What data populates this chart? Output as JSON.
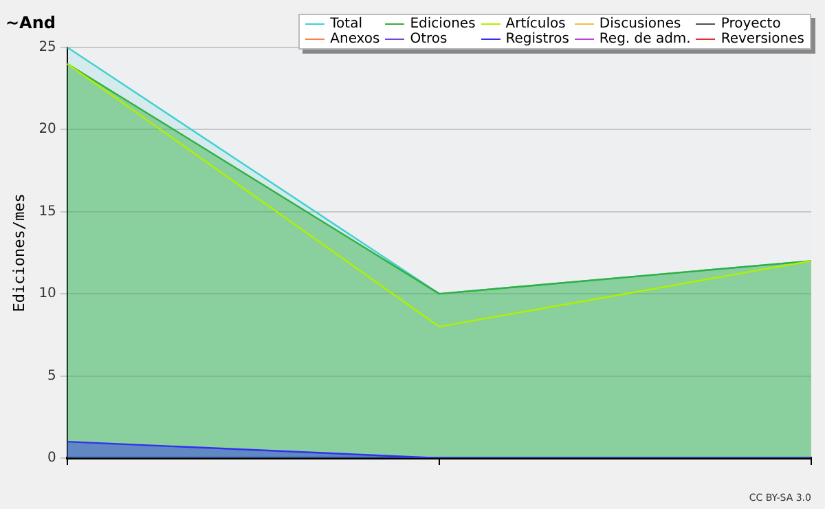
{
  "chart_data": {
    "type": "area",
    "title": "~And",
    "ylabel": "Ediciones/mes",
    "categories": [
      null,
      null,
      null
    ],
    "series": [
      {
        "name": "Total",
        "color": "#40d0d0",
        "type": "area",
        "values": [
          25,
          10,
          12
        ]
      },
      {
        "name": "Ediciones",
        "color": "#30b040",
        "type": "area",
        "values": [
          24,
          10,
          12
        ]
      },
      {
        "name": "Artículos",
        "color": "#b0f000",
        "type": "line",
        "values": [
          24,
          8,
          12
        ]
      },
      {
        "name": "Discusiones",
        "color": "#f0c040",
        "type": "line",
        "values": [
          null,
          null,
          null
        ]
      },
      {
        "name": "Proyecto",
        "color": "#505050",
        "type": "line",
        "values": [
          null,
          null,
          null
        ]
      },
      {
        "name": "Anexos",
        "color": "#ff8040",
        "type": "line",
        "values": [
          null,
          null,
          null
        ]
      },
      {
        "name": "Otros",
        "color": "#8040e0",
        "type": "line",
        "values": [
          null,
          null,
          null
        ]
      },
      {
        "name": "Registros",
        "color": "#3030f0",
        "type": "area",
        "values": [
          1,
          0,
          0
        ]
      },
      {
        "name": "Reg. de adm.",
        "color": "#c040e0",
        "type": "line",
        "values": [
          null,
          null,
          null
        ]
      },
      {
        "name": "Reversiones",
        "color": "#e03030",
        "type": "line",
        "values": [
          null,
          null,
          null
        ]
      }
    ],
    "ylim": [
      0,
      25
    ],
    "yticks": [
      0,
      5,
      10,
      15,
      20,
      25
    ],
    "grid": "y",
    "legend": "top right",
    "marker": "none",
    "annotations": [
      "CC BY-SA 3.0"
    ]
  }
}
